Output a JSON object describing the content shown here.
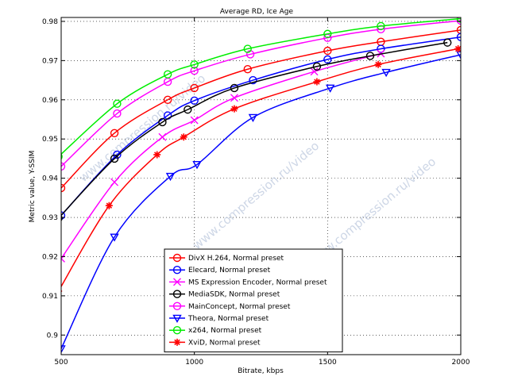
{
  "chart_data": {
    "type": "line",
    "title": "Average RD, Ice Age",
    "xlabel": "Bitrate, kbps",
    "ylabel": "Metric value, Y-SSIM",
    "xlim": [
      500,
      2000
    ],
    "ylim": [
      0.895,
      0.981
    ],
    "xticks": [
      500,
      1000,
      1500,
      2000
    ],
    "yticks": [
      0.9,
      0.91,
      0.92,
      0.93,
      0.94,
      0.95,
      0.96,
      0.97,
      0.98
    ],
    "grid": true,
    "legend_position": "lower-center",
    "watermark": "www.compression.ru/video",
    "series": [
      {
        "name": "DivX H.264, Normal preset",
        "color": "#ff0000",
        "marker": "circle",
        "x": [
          500,
          700,
          900,
          1000,
          1200,
          1500,
          1700,
          2000
        ],
        "y": [
          0.9375,
          0.9515,
          0.96,
          0.963,
          0.9678,
          0.9725,
          0.9748,
          0.9778
        ]
      },
      {
        "name": "Elecard, Normal preset",
        "color": "#0000ff",
        "marker": "circle",
        "x": [
          500,
          710,
          900,
          1000,
          1220,
          1500,
          1700,
          2000
        ],
        "y": [
          0.9305,
          0.946,
          0.956,
          0.9598,
          0.965,
          0.9703,
          0.973,
          0.976
        ]
      },
      {
        "name": "MS Expression Encoder, Normal preset",
        "color": "#ff00ff",
        "marker": "x",
        "x": [
          500,
          700,
          880,
          1000,
          1150,
          1450,
          1700
        ],
        "y": [
          0.9195,
          0.939,
          0.9505,
          0.9548,
          0.9605,
          0.9672,
          0.9718
        ]
      },
      {
        "name": "MediaSDK, Normal preset",
        "color": "#000000",
        "marker": "circle",
        "x": [
          490,
          700,
          880,
          975,
          1150,
          1460,
          1660,
          1950
        ],
        "y": [
          0.9298,
          0.945,
          0.9543,
          0.9575,
          0.963,
          0.9685,
          0.9712,
          0.9746
        ]
      },
      {
        "name": "MainConcept, Normal preset",
        "color": "#ff00ff",
        "marker": "circle",
        "x": [
          500,
          710,
          900,
          1000,
          1210,
          1500,
          1700,
          2000
        ],
        "y": [
          0.943,
          0.9565,
          0.9646,
          0.9674,
          0.9716,
          0.9758,
          0.978,
          0.9802
        ]
      },
      {
        "name": "Theora, Normal preset",
        "color": "#0000ff",
        "marker": "triangle-down",
        "x": [
          500,
          700,
          910,
          1010,
          1220,
          1510,
          1720,
          2000
        ],
        "y": [
          0.8965,
          0.925,
          0.9405,
          0.9435,
          0.9555,
          0.963,
          0.967,
          0.9715
        ]
      },
      {
        "name": "x264, Normal preset",
        "color": "#00ee00",
        "marker": "circle",
        "x": [
          490,
          710,
          900,
          1000,
          1200,
          1500,
          1700,
          2000
        ],
        "y": [
          0.9455,
          0.959,
          0.9665,
          0.969,
          0.973,
          0.9768,
          0.9788,
          0.9807
        ]
      },
      {
        "name": "XviD, Normal preset",
        "color": "#ff0000",
        "marker": "star",
        "x": [
          490,
          680,
          860,
          960,
          1150,
          1460,
          1690,
          1990
        ],
        "y": [
          0.9112,
          0.933,
          0.946,
          0.9505,
          0.9577,
          0.9646,
          0.969,
          0.973
        ]
      }
    ]
  }
}
